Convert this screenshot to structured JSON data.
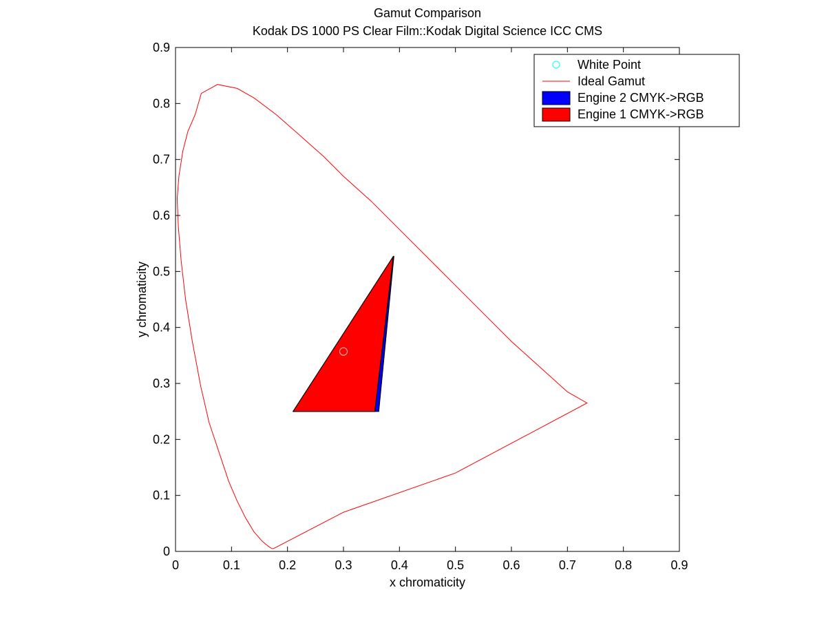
{
  "chart_data": {
    "type": "line",
    "title": "Gamut Comparison",
    "subtitle": "Kodak DS 1000 PS Clear Film::Kodak Digital Science ICC CMS",
    "xlabel": "x chromaticity",
    "ylabel": "y chromaticity",
    "xlim": [
      0,
      0.9
    ],
    "ylim": [
      0,
      0.9
    ],
    "xticks": [
      "0",
      "0.1",
      "0.2",
      "0.3",
      "0.4",
      "0.5",
      "0.6",
      "0.7",
      "0.8",
      "0.9"
    ],
    "yticks": [
      "0",
      "0.1",
      "0.2",
      "0.3",
      "0.4",
      "0.5",
      "0.6",
      "0.7",
      "0.8",
      "0.9"
    ],
    "grid": false,
    "legend_position": "top-right",
    "series": [
      {
        "name": "White Point",
        "kind": "marker",
        "color": "#00ffff",
        "points": [
          [
            0.3,
            0.357
          ]
        ]
      },
      {
        "name": "Ideal Gamut",
        "kind": "line",
        "color": "#ff0000",
        "points": [
          [
            0.175,
            0.005
          ],
          [
            0.172,
            0.005
          ],
          [
            0.166,
            0.009
          ],
          [
            0.155,
            0.018
          ],
          [
            0.14,
            0.035
          ],
          [
            0.125,
            0.06
          ],
          [
            0.11,
            0.09
          ],
          [
            0.095,
            0.125
          ],
          [
            0.08,
            0.17
          ],
          [
            0.06,
            0.23
          ],
          [
            0.045,
            0.295
          ],
          [
            0.03,
            0.375
          ],
          [
            0.018,
            0.45
          ],
          [
            0.01,
            0.52
          ],
          [
            0.005,
            0.58
          ],
          [
            0.003,
            0.63
          ],
          [
            0.006,
            0.67
          ],
          [
            0.013,
            0.715
          ],
          [
            0.022,
            0.75
          ],
          [
            0.035,
            0.78
          ],
          [
            0.046,
            0.818
          ],
          [
            0.075,
            0.834
          ],
          [
            0.11,
            0.827
          ],
          [
            0.14,
            0.81
          ],
          [
            0.18,
            0.78
          ],
          [
            0.22,
            0.745
          ],
          [
            0.265,
            0.705
          ],
          [
            0.3,
            0.67
          ],
          [
            0.35,
            0.625
          ],
          [
            0.4,
            0.575
          ],
          [
            0.45,
            0.525
          ],
          [
            0.5,
            0.475
          ],
          [
            0.55,
            0.425
          ],
          [
            0.6,
            0.375
          ],
          [
            0.65,
            0.33
          ],
          [
            0.7,
            0.285
          ],
          [
            0.735,
            0.265
          ],
          [
            0.5,
            0.14
          ],
          [
            0.3,
            0.07
          ],
          [
            0.175,
            0.005
          ]
        ]
      },
      {
        "name": "Engine 2 CMYK->RGB",
        "kind": "polygon",
        "color": "#0000ff",
        "points": [
          [
            0.21,
            0.25
          ],
          [
            0.363,
            0.25
          ],
          [
            0.39,
            0.527
          ]
        ]
      },
      {
        "name": "Engine 1 CMYK->RGB",
        "kind": "polygon",
        "color": "#ff0000",
        "points": [
          [
            0.21,
            0.25
          ],
          [
            0.356,
            0.25
          ],
          [
            0.389,
            0.527
          ]
        ]
      }
    ]
  }
}
